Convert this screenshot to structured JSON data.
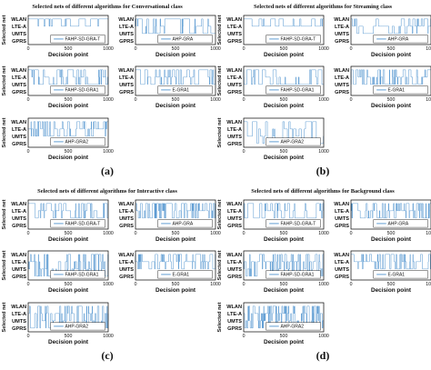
{
  "chart_data": {
    "type": "line",
    "style": {
      "line_color": "#3a86c8",
      "frame_color": "#000000"
    },
    "y_categories": [
      "WLAN",
      "LTE-A",
      "UMTS",
      "GPRS"
    ],
    "y_label": "Selected net",
    "x_label": "Decision point",
    "x_ticks": [
      "0",
      "500",
      "1000"
    ],
    "xlim": [
      0,
      1000
    ],
    "groups": [
      {
        "caption": "(a)",
        "title": "Selected nets of different algorithms for Conversational class",
        "panels": [
          {
            "legend": "FAHP-SD-GRA-T",
            "levels": [
              "WLAN",
              "LTE-A"
            ],
            "density": 0.22,
            "seed": 11
          },
          {
            "legend": "AHP-GRA",
            "levels": [
              "WLAN",
              "LTE-A",
              "UMTS"
            ],
            "density": 0.35,
            "seed": 12
          },
          {
            "legend": "FAHP-SD-GRA1",
            "levels": [
              "WLAN",
              "LTE-A",
              "UMTS"
            ],
            "density": 0.3,
            "seed": 13
          },
          {
            "legend": "E-GRA1",
            "levels": [
              "WLAN",
              "LTE-A",
              "UMTS"
            ],
            "density": 0.35,
            "seed": 14
          },
          {
            "legend": "AHP-GRA2",
            "levels": [
              "WLAN",
              "LTE-A",
              "UMTS"
            ],
            "density": 0.45,
            "seed": 15
          }
        ]
      },
      {
        "caption": "(b)",
        "title": "Selected nets of different algorithms for Streaming class",
        "panels": [
          {
            "legend": "FAHP-SD-GRA-T",
            "levels": [
              "WLAN",
              "LTE-A"
            ],
            "density": 0.2,
            "seed": 21
          },
          {
            "legend": "AHP-GRA",
            "levels": [
              "WLAN",
              "LTE-A",
              "UMTS"
            ],
            "density": 0.3,
            "seed": 22
          },
          {
            "legend": "FAHP-SD-GRA1",
            "levels": [
              "WLAN",
              "LTE-A",
              "UMTS"
            ],
            "density": 0.28,
            "seed": 23
          },
          {
            "legend": "E-GRA1",
            "levels": [
              "WLAN",
              "LTE-A",
              "UMTS"
            ],
            "density": 0.5,
            "seed": 24
          },
          {
            "legend": "AHP-GRA2",
            "levels": [
              "WLAN",
              "LTE-A",
              "UMTS",
              "GPRS"
            ],
            "density": 0.22,
            "seed": 25
          }
        ]
      },
      {
        "caption": "(c)",
        "title": "Selected nets of different algorithms for Interactive class",
        "panels": [
          {
            "legend": "FAHP-SD-GRA-T",
            "levels": [
              "WLAN",
              "LTE-A",
              "UMTS"
            ],
            "density": 0.3,
            "seed": 31
          },
          {
            "legend": "AHP-GRA",
            "levels": [
              "WLAN",
              "LTE-A",
              "UMTS"
            ],
            "density": 0.6,
            "seed": 32
          },
          {
            "legend": "FAHP-SD-GRA1",
            "levels": [
              "WLAN",
              "LTE-A",
              "UMTS",
              "GPRS"
            ],
            "density": 0.55,
            "seed": 33
          },
          {
            "legend": "E-GRA1",
            "levels": [
              "WLAN",
              "LTE-A",
              "UMTS"
            ],
            "density": 0.6,
            "seed": 34
          },
          {
            "legend": "AHP-GRA2",
            "levels": [
              "WLAN",
              "LTE-A",
              "UMTS",
              "GPRS"
            ],
            "density": 0.6,
            "seed": 35
          }
        ]
      },
      {
        "caption": "(d)",
        "title": "Selected nets of different algorithms for Background class",
        "panels": [
          {
            "legend": "FAHP-SD-GRA-T",
            "levels": [
              "WLAN",
              "LTE-A",
              "UMTS"
            ],
            "density": 0.3,
            "seed": 41
          },
          {
            "legend": "AHP-GRA",
            "levels": [
              "WLAN",
              "LTE-A",
              "UMTS"
            ],
            "density": 0.6,
            "seed": 42
          },
          {
            "legend": "FAHP-SD-GRA1",
            "levels": [
              "WLAN",
              "LTE-A",
              "UMTS",
              "GPRS"
            ],
            "density": 0.55,
            "seed": 43
          },
          {
            "legend": "E-GRA1",
            "levels": [
              "WLAN",
              "LTE-A",
              "UMTS"
            ],
            "density": 0.5,
            "seed": 44
          },
          {
            "legend": "AHP-GRA2",
            "levels": [
              "WLAN",
              "LTE-A",
              "UMTS",
              "GPRS"
            ],
            "density": 0.6,
            "seed": 45
          }
        ]
      }
    ]
  }
}
